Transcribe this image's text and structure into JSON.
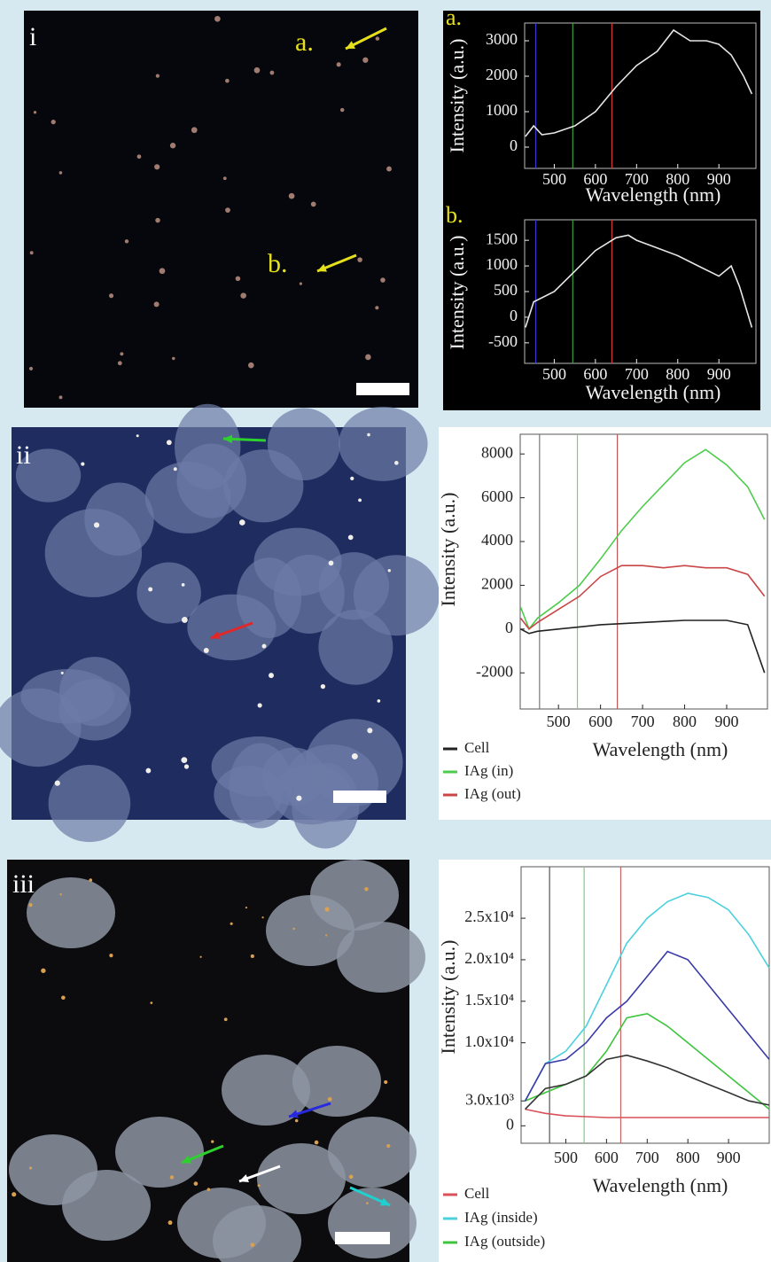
{
  "images": [
    {
      "label": "i",
      "annotations": [
        "a.",
        "b."
      ]
    },
    {
      "label": "ii"
    },
    {
      "label": "iii"
    }
  ],
  "chart_data": [
    {
      "type": "line",
      "title": "a.",
      "x": [
        430,
        450,
        470,
        500,
        550,
        600,
        650,
        700,
        750,
        790,
        830,
        870,
        900,
        930,
        960,
        980
      ],
      "values": [
        300,
        600,
        350,
        400,
        600,
        1000,
        1700,
        2300,
        2700,
        3300,
        3000,
        3000,
        2900,
        2600,
        2000,
        1500
      ],
      "color": "#e6e6e6",
      "xlim": [
        428,
        990
      ],
      "ylim": [
        -600,
        3500
      ],
      "xticks": [
        500,
        600,
        700,
        800,
        900
      ],
      "yticks": [
        0,
        1000,
        2000,
        3000
      ],
      "xlabel": "Wavelength (nm)",
      "ylabel": "Intensity (a.u.)",
      "vlines": [
        455,
        545,
        640
      ],
      "vline_colors": [
        "#3a3ad0",
        "#3aa03a",
        "#d03a3a"
      ]
    },
    {
      "type": "line",
      "title": "b.",
      "x": [
        430,
        450,
        500,
        550,
        600,
        650,
        680,
        700,
        750,
        800,
        850,
        900,
        930,
        950,
        980
      ],
      "values": [
        -200,
        300,
        500,
        900,
        1300,
        1550,
        1600,
        1500,
        1350,
        1200,
        1000,
        800,
        1000,
        600,
        -200
      ],
      "color": "#e6e6e6",
      "xlim": [
        428,
        990
      ],
      "ylim": [
        -900,
        1900
      ],
      "xticks": [
        500,
        600,
        700,
        800,
        900
      ],
      "yticks": [
        -500,
        0,
        500,
        1000,
        1500
      ],
      "xlabel": "Wavelength (nm)",
      "ylabel": "Intensity (a.u.)",
      "vlines": [
        455,
        545,
        640
      ],
      "vline_colors": [
        "#3a3ad0",
        "#3aa03a",
        "#d03a3a"
      ]
    },
    {
      "type": "line",
      "x": [
        410,
        430,
        450,
        500,
        550,
        600,
        650,
        700,
        750,
        800,
        850,
        900,
        950,
        990
      ],
      "series": [
        {
          "name": "Cell",
          "color": "#222222",
          "values": [
            0,
            -200,
            -100,
            0,
            100,
            200,
            250,
            300,
            350,
            400,
            400,
            400,
            200,
            -2000
          ]
        },
        {
          "name": "IAg (in)",
          "color": "#4ccc4c",
          "values": [
            1000,
            0,
            500,
            1200,
            2000,
            3200,
            4500,
            5600,
            6600,
            7600,
            8200,
            7500,
            6500,
            5000
          ]
        },
        {
          "name": "IAg (out)",
          "color": "#c84646",
          "values": [
            500,
            0,
            300,
            900,
            1500,
            2400,
            2900,
            2900,
            2800,
            2900,
            2800,
            2800,
            2500,
            1500
          ]
        }
      ],
      "xlim": [
        409,
        997
      ],
      "ylim": [
        -3650,
        8900
      ],
      "xticks": [
        500,
        600,
        700,
        800,
        900
      ],
      "yticks": [
        -2000,
        0,
        2000,
        4000,
        6000,
        8000
      ],
      "xlabel": "Wavelength (nm)",
      "ylabel": "Intensity (a.u.)",
      "vlines": [
        455,
        545,
        640
      ],
      "vline_colors": [
        "#777777",
        "#7ccc7c",
        "#b85a5a"
      ]
    },
    {
      "type": "line",
      "x": [
        400,
        450,
        500,
        550,
        600,
        650,
        700,
        750,
        800,
        850,
        900,
        950,
        1000
      ],
      "series": [
        {
          "name": "Cell",
          "color": "#d8505a",
          "values": [
            2000,
            1500,
            1200,
            1100,
            1000,
            1000,
            1000,
            1000,
            1000,
            1000,
            1000,
            1000,
            1000
          ]
        },
        {
          "name": "IAg (inside)",
          "color": "#4cd0dc",
          "values": [
            3000,
            7500,
            9000,
            12000,
            17000,
            22000,
            25000,
            27000,
            28000,
            27500,
            26000,
            23000,
            19000
          ]
        },
        {
          "name": "IAg (outside)",
          "color": "#3ec43e",
          "values": [
            3000,
            4000,
            5000,
            6000,
            9000,
            13000,
            13500,
            12000,
            10000,
            8000,
            6000,
            4000,
            2000
          ]
        },
        {
          "color": "#3a3aa8",
          "values": [
            3000,
            7500,
            8000,
            10000,
            13000,
            15000,
            18000,
            21000,
            20000,
            17000,
            14000,
            11000,
            8000
          ]
        },
        {
          "color": "#333333",
          "values": [
            2000,
            4500,
            5000,
            6000,
            8000,
            8500,
            7800,
            7000,
            6000,
            5000,
            4000,
            3000,
            2500
          ]
        }
      ],
      "xlim": [
        390,
        1000
      ],
      "ylim": [
        -2100,
        31200
      ],
      "xticks": [
        500,
        600,
        700,
        800,
        900
      ],
      "yticks": [
        0,
        {
          "value": 3000,
          "label": "3.0x10³"
        },
        {
          "value": 10000,
          "label": "1.0x10⁴"
        },
        {
          "value": 15000,
          "label": "1.5x10⁴"
        },
        {
          "value": 20000,
          "label": "2.0x10⁴"
        },
        {
          "value": 25000,
          "label": "2.5x10⁴"
        }
      ],
      "xlabel": "Wavelength (nm)",
      "ylabel": "Intensity (a.u.)",
      "vlines": [
        460,
        545,
        635
      ],
      "vline_colors": [
        "#555555",
        "#7ccc7c",
        "#c86464"
      ]
    }
  ]
}
